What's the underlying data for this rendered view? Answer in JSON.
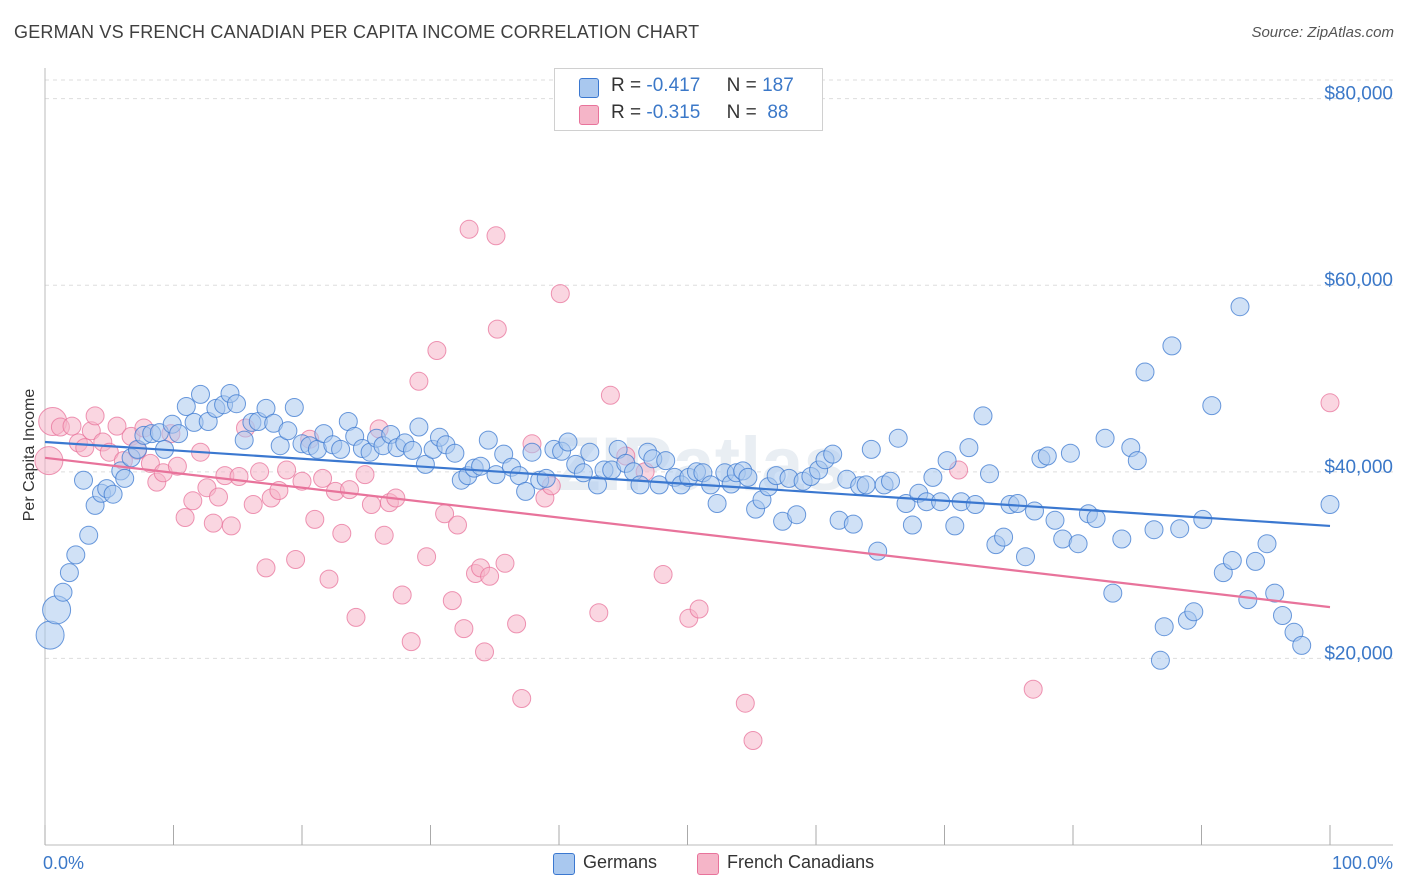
{
  "title": "GERMAN VS FRENCH CANADIAN PER CAPITA INCOME CORRELATION CHART",
  "source": "Source: ZipAtlas.com",
  "watermark": "ZIPatlas",
  "legend": {
    "rows": [
      {
        "r_label": "R =",
        "r_value": "-0.417",
        "n_label": "N =",
        "n_value": "187",
        "color": "#a9c8ef"
      },
      {
        "r_label": "R =",
        "r_value": "-0.315",
        "n_label": "N =",
        "n_value": "88",
        "color": "#f5b5c8"
      }
    ]
  },
  "bottom_legend": [
    {
      "label": "Germans",
      "color": "#a9c8ef"
    },
    {
      "label": "French Canadians",
      "color": "#f5b5c8"
    }
  ],
  "chart_data": {
    "type": "scatter",
    "title": "GERMAN VS FRENCH CANADIAN PER CAPITA INCOME CORRELATION CHART",
    "xlabel": "",
    "ylabel": "Per Capita Income",
    "x_tick_labels": [
      "0.0%",
      "100.0%"
    ],
    "y_tick_labels": [
      "$20,000",
      "$40,000",
      "$60,000",
      "$80,000"
    ],
    "y_ticks": [
      20000,
      40000,
      60000,
      80000
    ],
    "xlim": [
      0,
      100
    ],
    "ylim": [
      0,
      82000
    ],
    "grid": true,
    "series": [
      {
        "name": "Germans",
        "color": "#3b78d0",
        "fill": "#a9c8ef",
        "trend": {
          "x": [
            0,
            100
          ],
          "y": [
            43200,
            34200
          ]
        },
        "points": [
          [
            0.4,
            22500
          ],
          [
            0.9,
            25200
          ],
          [
            1.4,
            27100
          ],
          [
            1.9,
            29200
          ],
          [
            2.4,
            31100
          ],
          [
            3.0,
            39100
          ],
          [
            3.4,
            33200
          ],
          [
            3.9,
            36400
          ],
          [
            4.4,
            37700
          ],
          [
            4.8,
            38200
          ],
          [
            5.3,
            37600
          ],
          [
            5.9,
            40100
          ],
          [
            6.2,
            39300
          ],
          [
            6.7,
            41500
          ],
          [
            7.2,
            42400
          ],
          [
            7.7,
            43900
          ],
          [
            8.3,
            44100
          ],
          [
            8.9,
            44200
          ],
          [
            9.3,
            42400
          ],
          [
            9.9,
            45100
          ],
          [
            10.4,
            44100
          ],
          [
            11.0,
            47000
          ],
          [
            11.6,
            45300
          ],
          [
            12.1,
            48300
          ],
          [
            12.7,
            45400
          ],
          [
            13.3,
            46800
          ],
          [
            13.9,
            47200
          ],
          [
            14.4,
            48400
          ],
          [
            14.9,
            47300
          ],
          [
            15.5,
            43400
          ],
          [
            16.1,
            45300
          ],
          [
            16.6,
            45400
          ],
          [
            17.2,
            46800
          ],
          [
            17.8,
            45200
          ],
          [
            18.3,
            42800
          ],
          [
            18.9,
            44400
          ],
          [
            19.4,
            46900
          ],
          [
            20.0,
            43000
          ],
          [
            20.6,
            42800
          ],
          [
            21.2,
            42400
          ],
          [
            21.7,
            44100
          ],
          [
            22.4,
            42900
          ],
          [
            23.0,
            42400
          ],
          [
            23.6,
            45400
          ],
          [
            24.1,
            43800
          ],
          [
            24.7,
            42500
          ],
          [
            25.3,
            42100
          ],
          [
            25.8,
            43600
          ],
          [
            26.3,
            42800
          ],
          [
            26.9,
            44000
          ],
          [
            27.4,
            42600
          ],
          [
            28.0,
            43100
          ],
          [
            28.6,
            42300
          ],
          [
            29.1,
            44800
          ],
          [
            29.6,
            40800
          ],
          [
            30.2,
            42400
          ],
          [
            30.7,
            43700
          ],
          [
            31.2,
            42900
          ],
          [
            31.9,
            42000
          ],
          [
            32.4,
            39100
          ],
          [
            32.9,
            39600
          ],
          [
            33.4,
            40400
          ],
          [
            33.9,
            40600
          ],
          [
            34.5,
            43400
          ],
          [
            35.1,
            39700
          ],
          [
            35.7,
            41900
          ],
          [
            36.3,
            40500
          ],
          [
            36.9,
            39600
          ],
          [
            37.4,
            37900
          ],
          [
            37.9,
            42100
          ],
          [
            38.5,
            39100
          ],
          [
            39.0,
            39300
          ],
          [
            39.6,
            42400
          ],
          [
            40.2,
            42200
          ],
          [
            40.7,
            43200
          ],
          [
            41.3,
            40800
          ],
          [
            41.9,
            39900
          ],
          [
            42.4,
            42100
          ],
          [
            43.0,
            38600
          ],
          [
            43.5,
            40200
          ],
          [
            44.1,
            40200
          ],
          [
            44.6,
            42400
          ],
          [
            45.2,
            40900
          ],
          [
            45.8,
            40000
          ],
          [
            46.3,
            38600
          ],
          [
            46.9,
            42100
          ],
          [
            47.3,
            41400
          ],
          [
            47.8,
            38600
          ],
          [
            48.3,
            41200
          ],
          [
            49.0,
            39400
          ],
          [
            49.5,
            38600
          ],
          [
            50.1,
            39400
          ],
          [
            50.7,
            40000
          ],
          [
            51.2,
            39900
          ],
          [
            51.8,
            38600
          ],
          [
            52.3,
            36600
          ],
          [
            52.9,
            39900
          ],
          [
            53.4,
            38700
          ],
          [
            53.8,
            39900
          ],
          [
            54.3,
            40100
          ],
          [
            54.7,
            39400
          ],
          [
            55.3,
            36000
          ],
          [
            55.8,
            37000
          ],
          [
            56.3,
            38400
          ],
          [
            56.9,
            39600
          ],
          [
            57.4,
            34700
          ],
          [
            57.9,
            39300
          ],
          [
            58.5,
            35400
          ],
          [
            59.0,
            39000
          ],
          [
            59.6,
            39500
          ],
          [
            60.2,
            40200
          ],
          [
            60.7,
            41300
          ],
          [
            61.3,
            41900
          ],
          [
            61.8,
            34800
          ],
          [
            62.4,
            39200
          ],
          [
            62.9,
            34400
          ],
          [
            63.4,
            38500
          ],
          [
            63.9,
            38600
          ],
          [
            64.3,
            42400
          ],
          [
            64.8,
            31500
          ],
          [
            65.3,
            38600
          ],
          [
            65.8,
            39000
          ],
          [
            66.4,
            43600
          ],
          [
            67.0,
            36600
          ],
          [
            67.5,
            34300
          ],
          [
            68.0,
            37700
          ],
          [
            68.6,
            36800
          ],
          [
            69.1,
            39400
          ],
          [
            69.7,
            36800
          ],
          [
            70.2,
            41200
          ],
          [
            70.8,
            34200
          ],
          [
            71.3,
            36800
          ],
          [
            71.9,
            42600
          ],
          [
            72.4,
            36500
          ],
          [
            73.0,
            46000
          ],
          [
            73.5,
            39800
          ],
          [
            74.0,
            32200
          ],
          [
            74.6,
            33000
          ],
          [
            75.1,
            36500
          ],
          [
            75.7,
            36600
          ],
          [
            76.3,
            30900
          ],
          [
            77.0,
            35800
          ],
          [
            77.5,
            41400
          ],
          [
            78.0,
            41700
          ],
          [
            78.6,
            34800
          ],
          [
            79.2,
            32800
          ],
          [
            79.8,
            42000
          ],
          [
            80.4,
            32300
          ],
          [
            81.2,
            35500
          ],
          [
            81.8,
            35000
          ],
          [
            82.5,
            43600
          ],
          [
            83.1,
            27000
          ],
          [
            83.8,
            32800
          ],
          [
            84.5,
            42600
          ],
          [
            85.0,
            41200
          ],
          [
            85.6,
            50700
          ],
          [
            86.3,
            33800
          ],
          [
            86.8,
            19800
          ],
          [
            87.1,
            23400
          ],
          [
            87.7,
            53500
          ],
          [
            88.3,
            33900
          ],
          [
            88.9,
            24100
          ],
          [
            89.4,
            25000
          ],
          [
            90.1,
            34900
          ],
          [
            90.8,
            47100
          ],
          [
            91.7,
            29200
          ],
          [
            92.4,
            30500
          ],
          [
            93.0,
            57700
          ],
          [
            93.6,
            26300
          ],
          [
            94.2,
            30400
          ],
          [
            95.1,
            32300
          ],
          [
            95.7,
            27000
          ],
          [
            96.3,
            24600
          ],
          [
            97.2,
            22800
          ],
          [
            97.8,
            21400
          ],
          [
            100.0,
            36500
          ]
        ]
      },
      {
        "name": "French Canadians",
        "color": "#e8739b",
        "fill": "#f5b5c8",
        "trend": {
          "x": [
            0,
            100
          ],
          "y": [
            41500,
            25500
          ]
        },
        "points": [
          [
            0.3,
            41200
          ],
          [
            0.6,
            45400
          ],
          [
            1.2,
            44800
          ],
          [
            2.1,
            44900
          ],
          [
            2.6,
            43100
          ],
          [
            3.1,
            42600
          ],
          [
            3.6,
            44400
          ],
          [
            3.9,
            46000
          ],
          [
            4.5,
            43200
          ],
          [
            5.0,
            42100
          ],
          [
            5.6,
            44900
          ],
          [
            6.1,
            41200
          ],
          [
            6.7,
            43800
          ],
          [
            7.2,
            42300
          ],
          [
            7.7,
            44700
          ],
          [
            8.2,
            40900
          ],
          [
            8.7,
            38900
          ],
          [
            9.2,
            39900
          ],
          [
            9.8,
            44100
          ],
          [
            10.3,
            40600
          ],
          [
            10.9,
            35100
          ],
          [
            11.5,
            36900
          ],
          [
            12.1,
            42100
          ],
          [
            12.6,
            38300
          ],
          [
            13.1,
            34500
          ],
          [
            13.5,
            37300
          ],
          [
            14.0,
            39600
          ],
          [
            14.5,
            34200
          ],
          [
            15.1,
            39500
          ],
          [
            15.6,
            44700
          ],
          [
            16.2,
            36500
          ],
          [
            16.7,
            40000
          ],
          [
            17.2,
            29700
          ],
          [
            17.6,
            37200
          ],
          [
            18.2,
            38000
          ],
          [
            18.8,
            40200
          ],
          [
            19.5,
            30600
          ],
          [
            20.0,
            39000
          ],
          [
            20.6,
            43500
          ],
          [
            21.0,
            34900
          ],
          [
            21.6,
            39300
          ],
          [
            22.1,
            28500
          ],
          [
            22.6,
            37900
          ],
          [
            23.1,
            33400
          ],
          [
            23.7,
            38100
          ],
          [
            24.2,
            24400
          ],
          [
            24.9,
            39700
          ],
          [
            25.4,
            36500
          ],
          [
            26.0,
            44600
          ],
          [
            26.4,
            33200
          ],
          [
            26.8,
            36700
          ],
          [
            27.3,
            37200
          ],
          [
            27.8,
            26800
          ],
          [
            28.5,
            21800
          ],
          [
            29.1,
            49700
          ],
          [
            29.7,
            30900
          ],
          [
            30.5,
            53000
          ],
          [
            31.1,
            35500
          ],
          [
            31.7,
            26200
          ],
          [
            32.1,
            34300
          ],
          [
            32.6,
            23200
          ],
          [
            33.0,
            66000
          ],
          [
            33.5,
            29100
          ],
          [
            33.9,
            29700
          ],
          [
            34.2,
            20700
          ],
          [
            34.6,
            28800
          ],
          [
            35.1,
            65300
          ],
          [
            35.2,
            55300
          ],
          [
            35.8,
            30200
          ],
          [
            36.7,
            23700
          ],
          [
            37.1,
            15700
          ],
          [
            37.9,
            43000
          ],
          [
            38.9,
            37200
          ],
          [
            39.4,
            38500
          ],
          [
            40.1,
            59100
          ],
          [
            43.1,
            24900
          ],
          [
            44.0,
            48200
          ],
          [
            45.2,
            41700
          ],
          [
            46.7,
            40000
          ],
          [
            48.1,
            29000
          ],
          [
            50.1,
            24300
          ],
          [
            50.9,
            25300
          ],
          [
            54.5,
            15200
          ],
          [
            55.1,
            11200
          ],
          [
            71.1,
            40200
          ],
          [
            76.9,
            16700
          ],
          [
            100.0,
            47400
          ]
        ]
      }
    ]
  }
}
